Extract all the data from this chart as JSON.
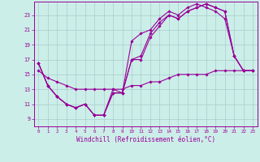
{
  "xlabel": "Windchill (Refroidissement éolien,°C)",
  "bg_color": "#cceee8",
  "line_color": "#990099",
  "grid_color": "#aacccc",
  "xticks": [
    0,
    1,
    2,
    3,
    4,
    5,
    6,
    7,
    8,
    9,
    10,
    11,
    12,
    13,
    14,
    15,
    16,
    17,
    18,
    19,
    20,
    21,
    22,
    23
  ],
  "yticks": [
    9,
    11,
    13,
    15,
    17,
    19,
    21,
    23
  ],
  "xlim": [
    -0.5,
    23.5
  ],
  "ylim": [
    8.0,
    24.8
  ],
  "series1_x": [
    0,
    1,
    2,
    3,
    4,
    5,
    6,
    7,
    8,
    9,
    10,
    11,
    12,
    13,
    14,
    15,
    16,
    17,
    18,
    19,
    20,
    21,
    22,
    23
  ],
  "series1_y": [
    16.5,
    13.5,
    12.0,
    11.0,
    10.5,
    11.0,
    9.5,
    9.5,
    13.0,
    12.5,
    19.5,
    20.5,
    21.0,
    22.5,
    23.5,
    23.0,
    24.0,
    24.5,
    24.0,
    23.5,
    22.5,
    17.5,
    15.5,
    15.5
  ],
  "series2_x": [
    0,
    1,
    2,
    3,
    4,
    5,
    6,
    7,
    8,
    9,
    10,
    11,
    12,
    13,
    14,
    15,
    16,
    17,
    18,
    19,
    20,
    21,
    22,
    23
  ],
  "series2_y": [
    16.5,
    13.5,
    12.0,
    11.0,
    10.5,
    11.0,
    9.5,
    9.5,
    12.5,
    12.5,
    17.0,
    17.5,
    20.5,
    22.0,
    23.0,
    22.5,
    23.5,
    24.0,
    24.5,
    24.0,
    23.5,
    17.5,
    15.5,
    15.5
  ],
  "series3_x": [
    0,
    1,
    2,
    3,
    4,
    5,
    6,
    7,
    8,
    9,
    10,
    11,
    12,
    13,
    14,
    15,
    16,
    17,
    18,
    19,
    20,
    21,
    22,
    23
  ],
  "series3_y": [
    16.5,
    13.5,
    12.0,
    11.0,
    10.5,
    11.0,
    9.5,
    9.5,
    12.5,
    12.5,
    17.0,
    17.0,
    20.0,
    21.5,
    23.0,
    22.5,
    23.5,
    24.0,
    24.5,
    24.0,
    23.5,
    17.5,
    15.5,
    15.5
  ],
  "series4_x": [
    0,
    1,
    2,
    3,
    4,
    5,
    6,
    7,
    8,
    9,
    10,
    11,
    12,
    13,
    14,
    15,
    16,
    17,
    18,
    19,
    20,
    21,
    22,
    23
  ],
  "series4_y": [
    15.5,
    14.5,
    14.0,
    13.5,
    13.0,
    13.0,
    13.0,
    13.0,
    13.0,
    13.0,
    13.5,
    13.5,
    14.0,
    14.0,
    14.5,
    15.0,
    15.0,
    15.0,
    15.0,
    15.5,
    15.5,
    15.5,
    15.5,
    15.5
  ]
}
